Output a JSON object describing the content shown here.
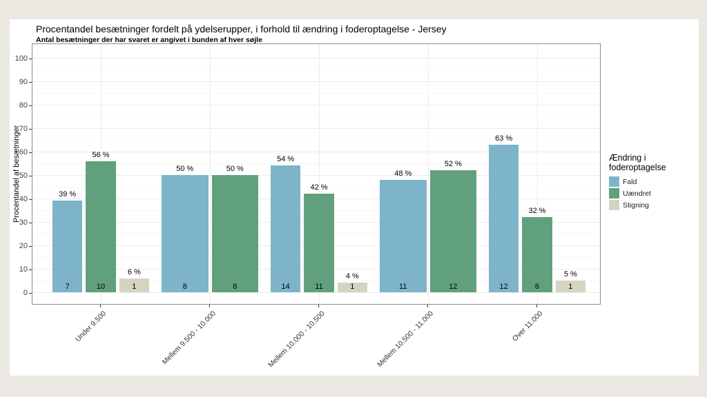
{
  "page": {
    "background_color": "#eae8e0",
    "card_background_color": "#ffffff",
    "panel_border_color": "#8a8a8a",
    "grid_major_color": "#ebebeb",
    "grid_minor_color": "#f6f6f6"
  },
  "chart_data": {
    "type": "bar",
    "title": "Procentandel besætninger fordelt på ydelserupper, i forhold til ændring i foderoptagelse - Jersey",
    "subtitle": "Antal besætninger der har svaret er angivet i bunden af hver søjle",
    "ylabel": "Procentandel af besætninger",
    "xlabel": "",
    "ylim": [
      0,
      100
    ],
    "y_ticks": [
      0,
      10,
      20,
      30,
      40,
      50,
      60,
      70,
      80,
      90,
      100
    ],
    "grid": "on",
    "legend_position": "right",
    "legend": {
      "title": "Ændring i foderoptagelse",
      "entries": [
        {
          "label": "Fald",
          "color": "#7db4ca"
        },
        {
          "label": "Uændret",
          "color": "#61a07c"
        },
        {
          "label": "Stigning",
          "color": "#d6d3c1"
        }
      ]
    },
    "categories": [
      "Under 9.500",
      "Mellem 9.500 - 10.000",
      "Mellem 10.000 - 10.500",
      "Mellem 10.500 - 11.000",
      "Over 11.000"
    ],
    "series": [
      {
        "name": "Fald",
        "values": [
          39,
          50,
          54,
          48,
          63
        ],
        "counts": [
          7,
          8,
          14,
          11,
          12
        ]
      },
      {
        "name": "Uændret",
        "values": [
          56,
          50,
          42,
          52,
          32
        ],
        "counts": [
          10,
          8,
          11,
          12,
          6
        ]
      },
      {
        "name": "Stigning",
        "values": [
          6,
          null,
          4,
          null,
          5
        ],
        "counts": [
          1,
          null,
          1,
          null,
          1
        ]
      }
    ],
    "groups": [
      {
        "category": "Under 9.500",
        "bars": [
          {
            "series": "Fald",
            "pct": 39,
            "pct_label": "39 %",
            "count": "7"
          },
          {
            "series": "Uændret",
            "pct": 56,
            "pct_label": "56 %",
            "count": "10"
          },
          {
            "series": "Stigning",
            "pct": 6,
            "pct_label": "6 %",
            "count": "1"
          }
        ]
      },
      {
        "category": "Mellem 9.500 - 10.000",
        "bars": [
          {
            "series": "Fald",
            "pct": 50,
            "pct_label": "50 %",
            "count": "8"
          },
          {
            "series": "Uændret",
            "pct": 50,
            "pct_label": "50 %",
            "count": "8"
          }
        ]
      },
      {
        "category": "Mellem 10.000 - 10.500",
        "bars": [
          {
            "series": "Fald",
            "pct": 54,
            "pct_label": "54 %",
            "count": "14"
          },
          {
            "series": "Uændret",
            "pct": 42,
            "pct_label": "42 %",
            "count": "11"
          },
          {
            "series": "Stigning",
            "pct": 4,
            "pct_label": "4 %",
            "count": "1"
          }
        ]
      },
      {
        "category": "Mellem 10.500 - 11.000",
        "bars": [
          {
            "series": "Fald",
            "pct": 48,
            "pct_label": "48 %",
            "count": "11"
          },
          {
            "series": "Uændret",
            "pct": 52,
            "pct_label": "52 %",
            "count": "12"
          }
        ]
      },
      {
        "category": "Over 11.000",
        "bars": [
          {
            "series": "Fald",
            "pct": 63,
            "pct_label": "63 %",
            "count": "12"
          },
          {
            "series": "Uændret",
            "pct": 32,
            "pct_label": "32 %",
            "count": "6"
          },
          {
            "series": "Stigning",
            "pct": 5,
            "pct_label": "5 %",
            "count": "1"
          }
        ]
      }
    ]
  }
}
